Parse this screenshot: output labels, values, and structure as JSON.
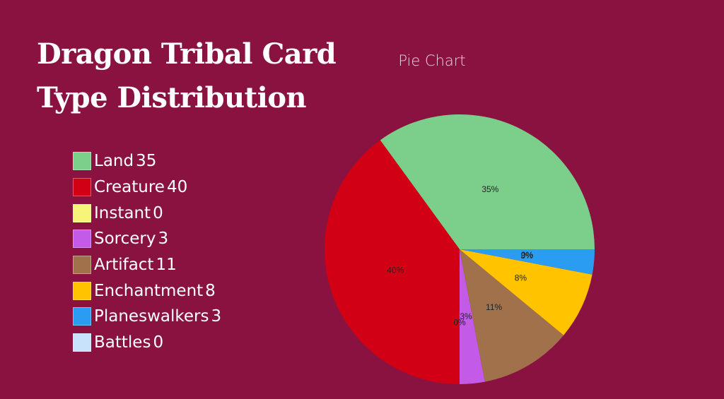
{
  "header": {
    "title": "Dragon Tribal Card Type Distribution"
  },
  "chart_data": {
    "type": "pie",
    "title": "Pie Chart",
    "legend_position": "left",
    "categories": [
      "Land",
      "Creature",
      "Instant",
      "Sorcery",
      "Artifact",
      "Enchantment",
      "Planeswalkers",
      "Battles"
    ],
    "values": [
      35,
      40,
      0,
      3,
      11,
      8,
      3,
      0
    ],
    "labels": [
      "35%",
      "40%",
      "0%",
      "3%",
      "11%",
      "8%",
      "3%",
      "0%"
    ],
    "colors": [
      "#7ccf8a",
      "#d10014",
      "#f6f57a",
      "#c45ae8",
      "#a0714a",
      "#ffc300",
      "#2a9df2",
      "#c8e2fb"
    ]
  }
}
